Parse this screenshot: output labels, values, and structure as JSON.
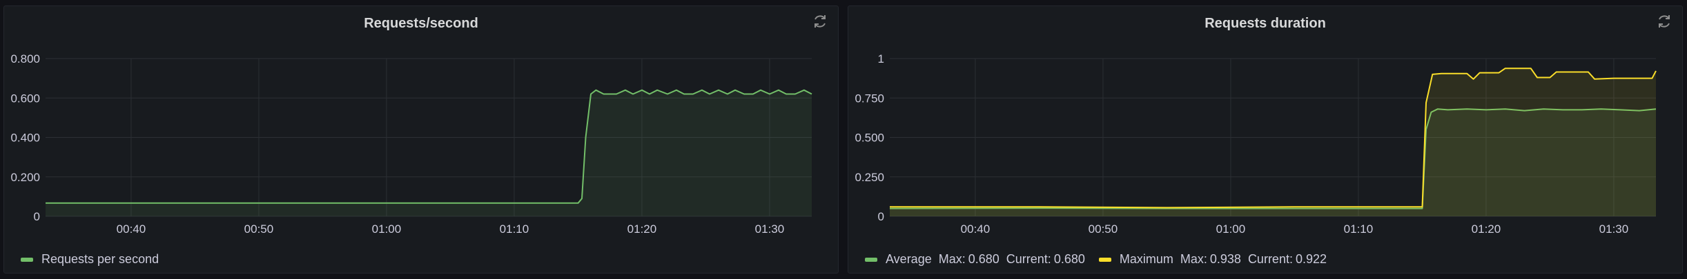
{
  "panels": [
    {
      "title": "Requests/second",
      "chart_data": {
        "type": "area",
        "title": "Requests/second",
        "x_ticks": [
          "00:40",
          "00:50",
          "01:00",
          "01:10",
          "01:20",
          "01:30"
        ],
        "y_ticks": [
          "0",
          "0.200",
          "0.400",
          "0.600",
          "0.800"
        ],
        "ylim": [
          0,
          0.8
        ],
        "xlim_minutes": [
          33.3,
          93.3
        ],
        "x_tick_minutes": [
          40,
          50,
          60,
          70,
          80,
          90
        ],
        "series": [
          {
            "name": "Requests per second",
            "color": "#73bf69",
            "x_minutes": [
              33.3,
              75.0,
              75.3,
              75.6,
              76.0,
              76.4,
              77.0,
              78.0,
              78.7,
              79.3,
              80.0,
              80.6,
              81.2,
              82.0,
              82.7,
              83.3,
              84.0,
              84.7,
              85.3,
              86.0,
              86.7,
              87.3,
              88.0,
              88.7,
              89.3,
              90.0,
              90.7,
              91.3,
              92.0,
              92.7,
              93.3
            ],
            "values": [
              0.067,
              0.067,
              0.09,
              0.4,
              0.62,
              0.64,
              0.62,
              0.62,
              0.64,
              0.62,
              0.64,
              0.62,
              0.64,
              0.62,
              0.64,
              0.62,
              0.62,
              0.64,
              0.62,
              0.64,
              0.62,
              0.64,
              0.62,
              0.62,
              0.64,
              0.62,
              0.64,
              0.62,
              0.62,
              0.64,
              0.62
            ]
          }
        ]
      },
      "legend": [
        {
          "label": "Requests per second",
          "color": "#73bf69"
        }
      ]
    },
    {
      "title": "Requests duration",
      "chart_data": {
        "type": "line",
        "title": "Requests duration",
        "x_ticks": [
          "00:40",
          "00:50",
          "01:00",
          "01:10",
          "01:20",
          "01:30"
        ],
        "y_ticks": [
          "0",
          "0.250",
          "0.500",
          "0.750",
          "1"
        ],
        "ylim": [
          0,
          1
        ],
        "xlim_minutes": [
          33.3,
          93.3
        ],
        "x_tick_minutes": [
          40,
          50,
          60,
          70,
          80,
          90
        ],
        "series": [
          {
            "name": "Average",
            "color": "#73bf69",
            "x_minutes": [
              33.3,
              45,
              55,
              65,
              75.0,
              75.3,
              75.7,
              76.2,
              77.0,
              78.5,
              80.0,
              81.5,
              83.0,
              84.5,
              86.0,
              87.5,
              89.0,
              90.5,
              92.0,
              93.3
            ],
            "values": [
              0.05,
              0.052,
              0.05,
              0.05,
              0.05,
              0.55,
              0.66,
              0.68,
              0.675,
              0.68,
              0.675,
              0.68,
              0.67,
              0.68,
              0.675,
              0.675,
              0.68,
              0.675,
              0.67,
              0.68
            ]
          },
          {
            "name": "Maximum",
            "color": "#fade2a",
            "x_minutes": [
              33.3,
              45,
              55,
              65,
              75.0,
              75.3,
              75.8,
              76.5,
              78.5,
              79.0,
              79.5,
              81.0,
              81.5,
              83.5,
              84.0,
              85.0,
              85.5,
              88.0,
              88.5,
              90.0,
              91.5,
              93.0,
              93.3
            ],
            "values": [
              0.06,
              0.06,
              0.055,
              0.06,
              0.06,
              0.72,
              0.9,
              0.905,
              0.905,
              0.87,
              0.91,
              0.91,
              0.938,
              0.938,
              0.88,
              0.88,
              0.915,
              0.915,
              0.87,
              0.875,
              0.875,
              0.875,
              0.922
            ]
          }
        ]
      },
      "legend": [
        {
          "label": "Average",
          "color": "#73bf69",
          "max_label": "Max:",
          "max": "0.680",
          "current_label": "Current:",
          "current": "0.680"
        },
        {
          "label": "Maximum",
          "color": "#fade2a",
          "max_label": "Max:",
          "max": "0.938",
          "current_label": "Current:",
          "current": "0.922"
        }
      ]
    }
  ]
}
